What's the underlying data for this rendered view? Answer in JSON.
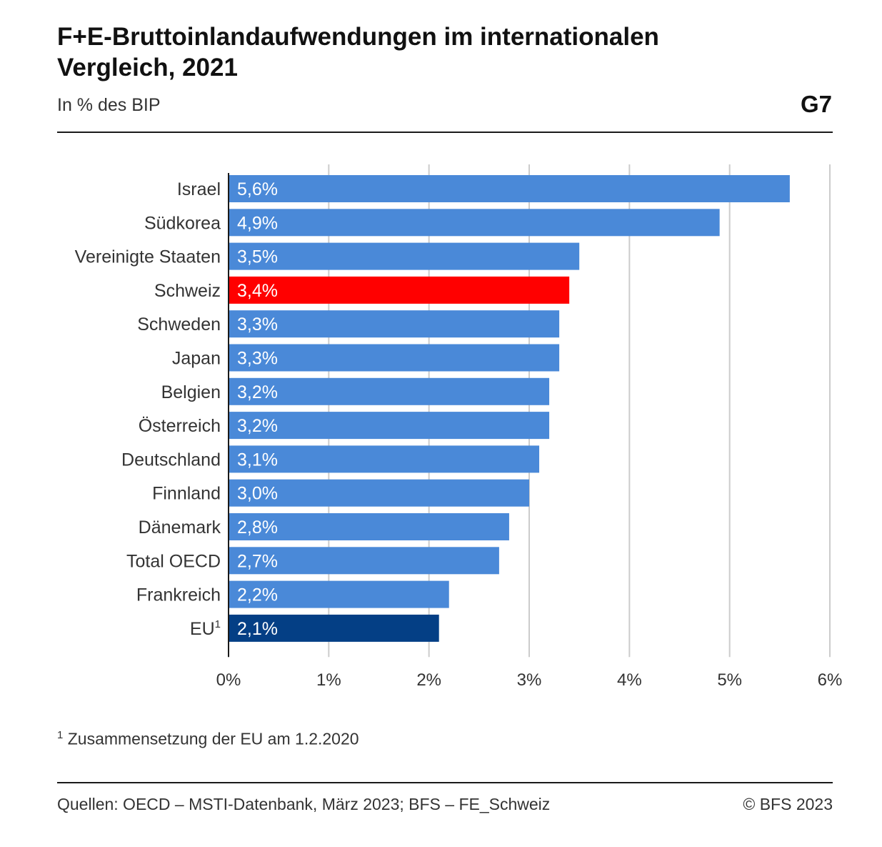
{
  "header": {
    "title": "F+E-Bruttoinlandaufwendungen im internationalen Vergleich, 2021",
    "subtitle": "In % des BIP",
    "badge": "G7"
  },
  "colors": {
    "bar_default": "#4a89d8",
    "bar_highlight": "#ff0000",
    "bar_eu": "#043f85",
    "grid": "#cccccc",
    "axis": "#1a1a1a"
  },
  "chart_data": {
    "type": "bar",
    "orientation": "horizontal",
    "categories": [
      "Israel",
      "Südkorea",
      "Vereinigte Staaten",
      "Schweiz",
      "Schweden",
      "Japan",
      "Belgien",
      "Österreich",
      "Deutschland",
      "Finnland",
      "Dänemark",
      "Total OECD",
      "Frankreich",
      "EU"
    ],
    "category_superscripts": {
      "EU": "1"
    },
    "values": [
      5.6,
      4.9,
      3.5,
      3.4,
      3.3,
      3.3,
      3.2,
      3.2,
      3.1,
      3.0,
      2.8,
      2.7,
      2.2,
      2.1
    ],
    "value_labels": [
      "5,6%",
      "4,9%",
      "3,5%",
      "3,4%",
      "3,3%",
      "3,3%",
      "3,2%",
      "3,2%",
      "3,1%",
      "3,0%",
      "2,8%",
      "2,7%",
      "2,2%",
      "2,1%"
    ],
    "highlight": {
      "Schweiz": "bar_highlight",
      "EU": "bar_eu"
    },
    "xlim": [
      0,
      6
    ],
    "xticks": [
      0,
      1,
      2,
      3,
      4,
      5,
      6
    ],
    "xtick_labels": [
      "0%",
      "1%",
      "2%",
      "3%",
      "4%",
      "5%",
      "6%"
    ],
    "grid": true,
    "legend": "none"
  },
  "footer": {
    "footnote_marker": "1",
    "footnote_text": " Zusammensetzung der EU am 1.2.2020",
    "source": "Quellen: OECD – MSTI-Datenbank, März 2023; BFS – FE_Schweiz",
    "copyright": "© BFS 2023"
  }
}
